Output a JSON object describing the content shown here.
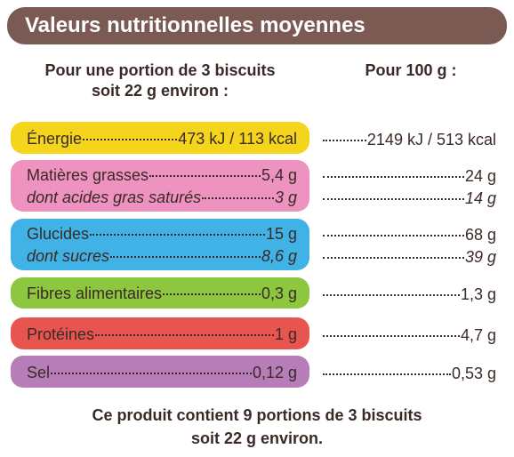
{
  "header": {
    "title": "Valeurs nutritionnelles moyennes"
  },
  "columns": {
    "portion": [
      "Pour une portion de 3 biscuits",
      "soit 22 g environ :"
    ],
    "per100": "Pour 100 g :"
  },
  "rows": [
    {
      "lines": [
        {
          "label": "Énergie",
          "portion": "473 kJ / 113 kcal",
          "per100": "2149 kJ / 513 kcal"
        }
      ]
    },
    {
      "lines": [
        {
          "label": "Matières grasses",
          "portion": "5,4 g",
          "per100": "24 g"
        },
        {
          "label": "dont acides gras saturés",
          "portion": "3 g",
          "per100": "14 g"
        }
      ]
    },
    {
      "lines": [
        {
          "label": "Glucides",
          "portion": "15 g",
          "per100": "68 g"
        },
        {
          "label": "dont sucres",
          "portion": "8,6 g",
          "per100": "39 g"
        }
      ]
    },
    {
      "lines": [
        {
          "label": "Fibres alimentaires",
          "portion": "0,3 g",
          "per100": "1,3 g"
        }
      ]
    },
    {
      "lines": [
        {
          "label": "Protéines",
          "portion": "1 g",
          "per100": "4,7 g"
        }
      ]
    },
    {
      "lines": [
        {
          "label": "Sel",
          "portion": "0,12 g",
          "per100": "0,53 g"
        }
      ]
    }
  ],
  "footer": [
    "Ce produit contient 9 portions de 3 biscuits",
    "soit 22 g environ."
  ]
}
